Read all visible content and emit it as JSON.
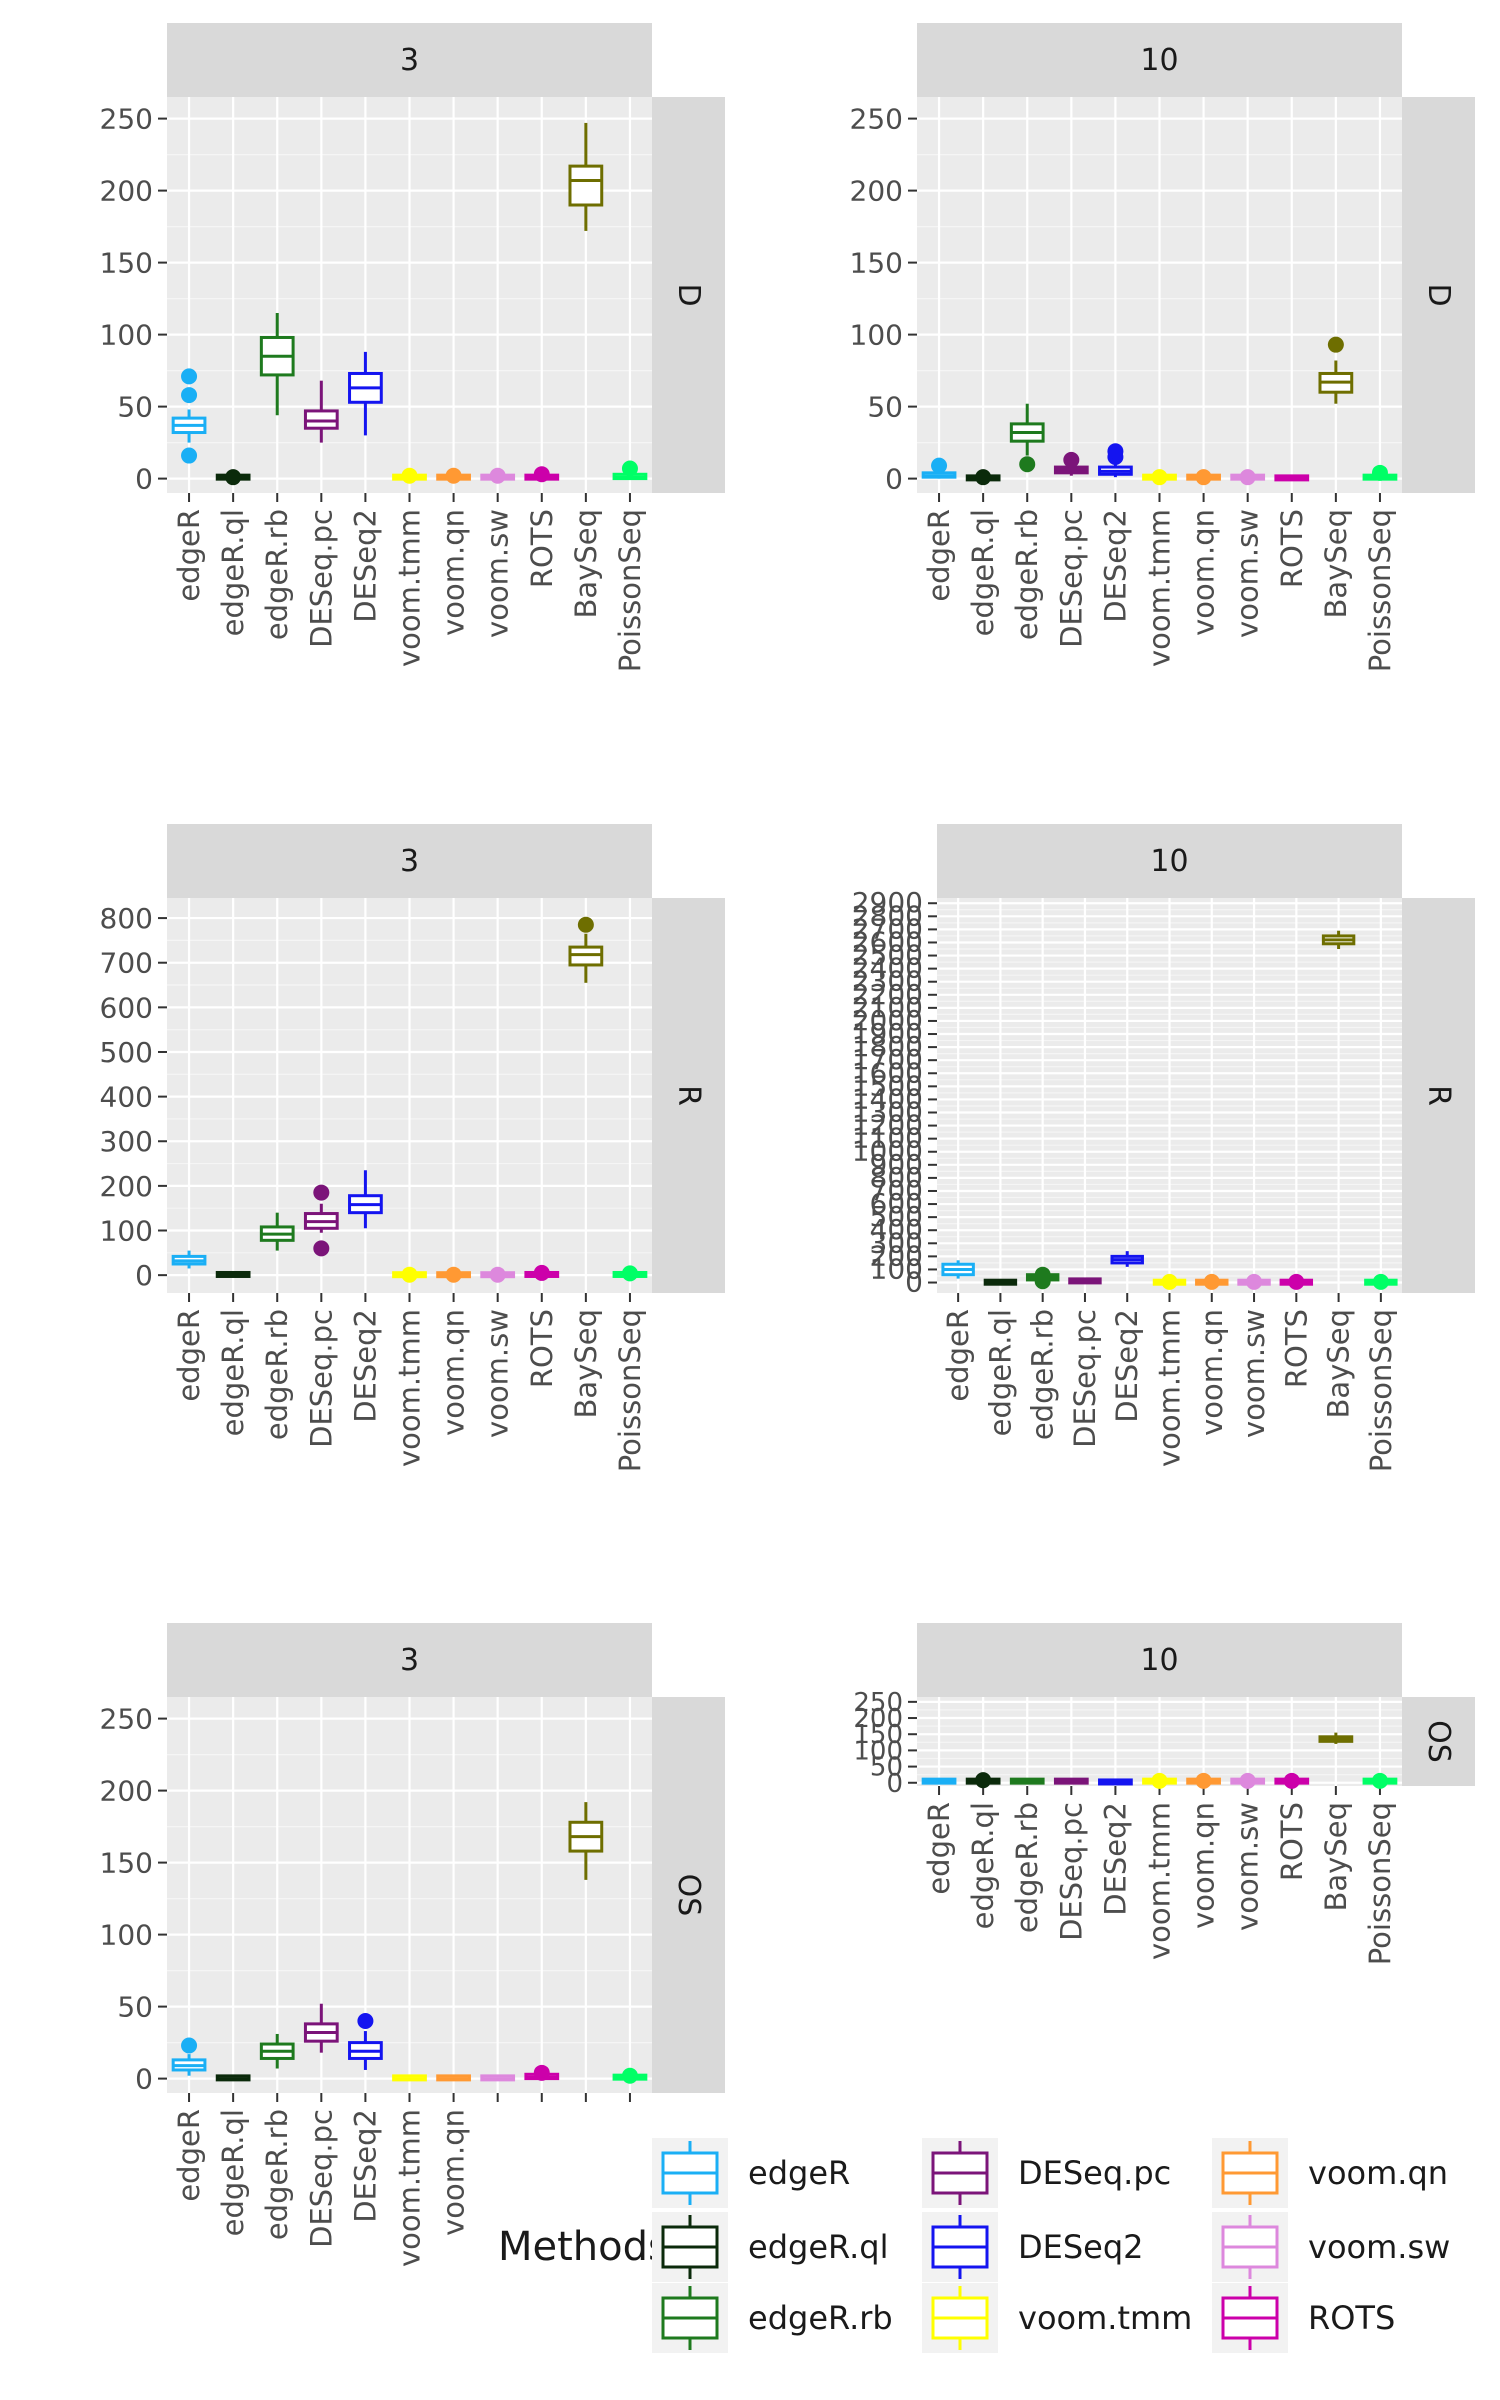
{
  "colors": {
    "edgeR": "#1AAFF5",
    "edgeR.ql": "#0B2A0B",
    "edgeR.rb": "#1E7A1E",
    "DESeq.pc": "#7B1479",
    "DESeq2": "#1414F0",
    "voom.tmm": "#FFFF00",
    "voom.qn": "#FF9933",
    "voom.sw": "#DD88DD",
    "ROTS": "#CC00AA",
    "BaySeq": "#6E6E00",
    "PoissonSeq": "#00FF66"
  },
  "legend": {
    "title": "Methods",
    "items": [
      "edgeR",
      "edgeR.ql",
      "edgeR.rb",
      "DESeq.pc",
      "DESeq2",
      "voom.tmm",
      "voom.qn",
      "voom.sw",
      "ROTS"
    ]
  },
  "chart_data": [
    {
      "type": "boxplot",
      "col_strip": "3",
      "row_strip": "D",
      "ylim": [
        -10,
        265
      ],
      "yticks": [
        "0",
        "50",
        "100",
        "150",
        "200",
        "250"
      ],
      "ytick_values": [
        0,
        50,
        100,
        150,
        200,
        250
      ],
      "categories": [
        "edgeR",
        "edgeR.ql",
        "edgeR.rb",
        "DESeq.pc",
        "DESeq2",
        "voom.tmm",
        "voom.qn",
        "voom.sw",
        "ROTS",
        "BaySeq",
        "PoissonSeq"
      ],
      "boxes": [
        {
          "min": 25,
          "q1": 32,
          "median": 37,
          "q3": 42,
          "max": 48,
          "outliers": [
            16,
            58,
            71
          ]
        },
        {
          "min": 0,
          "q1": 0,
          "median": 1,
          "q3": 2,
          "max": 3,
          "outliers": [
            1
          ]
        },
        {
          "min": 44,
          "q1": 72,
          "median": 85,
          "q3": 98,
          "max": 115,
          "outliers": []
        },
        {
          "min": 25,
          "q1": 35,
          "median": 40,
          "q3": 47,
          "max": 68,
          "outliers": []
        },
        {
          "min": 30,
          "q1": 53,
          "median": 63,
          "q3": 73,
          "max": 88,
          "outliers": []
        },
        {
          "min": 0,
          "q1": 0,
          "median": 1,
          "q3": 2,
          "max": 4,
          "outliers": [
            2
          ]
        },
        {
          "min": 0,
          "q1": 0,
          "median": 1,
          "q3": 2,
          "max": 4,
          "outliers": [
            2
          ]
        },
        {
          "min": 0,
          "q1": 0,
          "median": 1,
          "q3": 2,
          "max": 4,
          "outliers": [
            2
          ]
        },
        {
          "min": 0,
          "q1": 0,
          "median": 1,
          "q3": 2,
          "max": 5,
          "outliers": [
            3
          ]
        },
        {
          "min": 172,
          "q1": 190,
          "median": 207,
          "q3": 217,
          "max": 247,
          "outliers": []
        },
        {
          "min": 0,
          "q1": 0,
          "median": 1,
          "q3": 3,
          "max": 6,
          "outliers": [
            7
          ]
        }
      ]
    },
    {
      "type": "boxplot",
      "col_strip": "10",
      "row_strip": "D",
      "ylim": [
        -10,
        265
      ],
      "yticks": [
        "0",
        "50",
        "100",
        "150",
        "200",
        "250"
      ],
      "ytick_values": [
        0,
        50,
        100,
        150,
        200,
        250
      ],
      "categories": [
        "edgeR",
        "edgeR.ql",
        "edgeR.rb",
        "DESeq.pc",
        "DESeq2",
        "voom.tmm",
        "voom.qn",
        "voom.sw",
        "ROTS",
        "BaySeq",
        "PoissonSeq"
      ],
      "boxes": [
        {
          "min": 0,
          "q1": 1,
          "median": 2,
          "q3": 4,
          "max": 6,
          "outliers": [
            9
          ]
        },
        {
          "min": 0,
          "q1": 0,
          "median": 1,
          "q3": 1,
          "max": 2,
          "outliers": [
            1
          ]
        },
        {
          "min": 16,
          "q1": 26,
          "median": 32,
          "q3": 38,
          "max": 52,
          "outliers": [
            10
          ]
        },
        {
          "min": 2,
          "q1": 4,
          "median": 6,
          "q3": 8,
          "max": 10,
          "outliers": [
            13
          ]
        },
        {
          "min": 1,
          "q1": 3,
          "median": 5,
          "q3": 8,
          "max": 12,
          "outliers": [
            15,
            19
          ]
        },
        {
          "min": 0,
          "q1": 0,
          "median": 1,
          "q3": 2,
          "max": 3,
          "outliers": [
            1
          ]
        },
        {
          "min": 0,
          "q1": 0,
          "median": 1,
          "q3": 2,
          "max": 3,
          "outliers": [
            1
          ]
        },
        {
          "min": 0,
          "q1": 0,
          "median": 1,
          "q3": 2,
          "max": 3,
          "outliers": [
            1
          ]
        },
        {
          "min": 0,
          "q1": 0,
          "median": 1,
          "q3": 1,
          "max": 2,
          "outliers": []
        },
        {
          "min": 52,
          "q1": 60,
          "median": 67,
          "q3": 73,
          "max": 82,
          "outliers": [
            93
          ]
        },
        {
          "min": 0,
          "q1": 0,
          "median": 1,
          "q3": 2,
          "max": 3,
          "outliers": [
            4
          ]
        }
      ]
    },
    {
      "type": "boxplot",
      "col_strip": "3",
      "row_strip": "R",
      "ylim": [
        -40,
        845
      ],
      "yticks": [
        "0",
        "100",
        "200",
        "300",
        "400",
        "500",
        "600",
        "700",
        "800"
      ],
      "ytick_values": [
        0,
        100,
        200,
        300,
        400,
        500,
        600,
        700,
        800
      ],
      "categories": [
        "edgeR",
        "edgeR.ql",
        "edgeR.rb",
        "DESeq.pc",
        "DESeq2",
        "voom.tmm",
        "voom.qn",
        "voom.sw",
        "ROTS",
        "BaySeq",
        "PoissonSeq"
      ],
      "boxes": [
        {
          "min": 15,
          "q1": 25,
          "median": 32,
          "q3": 42,
          "max": 55,
          "outliers": []
        },
        {
          "min": 0,
          "q1": 0,
          "median": 1,
          "q3": 3,
          "max": 5,
          "outliers": []
        },
        {
          "min": 55,
          "q1": 78,
          "median": 92,
          "q3": 108,
          "max": 140,
          "outliers": []
        },
        {
          "min": 95,
          "q1": 105,
          "median": 120,
          "q3": 138,
          "max": 160,
          "outliers": [
            60,
            185
          ]
        },
        {
          "min": 105,
          "q1": 140,
          "median": 158,
          "q3": 178,
          "max": 235,
          "outliers": []
        },
        {
          "min": 0,
          "q1": 0,
          "median": 1,
          "q3": 2,
          "max": 4,
          "outliers": [
            1
          ]
        },
        {
          "min": 0,
          "q1": 0,
          "median": 1,
          "q3": 2,
          "max": 4,
          "outliers": [
            1
          ]
        },
        {
          "min": 0,
          "q1": 0,
          "median": 1,
          "q3": 2,
          "max": 4,
          "outliers": [
            1
          ]
        },
        {
          "min": 0,
          "q1": 0,
          "median": 1,
          "q3": 3,
          "max": 6,
          "outliers": [
            5
          ]
        },
        {
          "min": 655,
          "q1": 695,
          "median": 718,
          "q3": 735,
          "max": 765,
          "outliers": [
            785
          ]
        },
        {
          "min": 0,
          "q1": 0,
          "median": 1,
          "q3": 3,
          "max": 6,
          "outliers": [
            4
          ]
        }
      ]
    },
    {
      "type": "boxplot",
      "col_strip": "10",
      "row_strip": "R",
      "ylim": [
        -80,
        2940
      ],
      "yticks": [
        "0",
        "100",
        "200",
        "300",
        "400",
        "500",
        "600",
        "700",
        "800",
        "900",
        "1000",
        "1100",
        "1200",
        "1300",
        "1400",
        "1500",
        "1600",
        "1700",
        "1800",
        "1900",
        "2000",
        "2100",
        "2200",
        "2300",
        "2400",
        "2500",
        "2600",
        "2700",
        "2800",
        "2900"
      ],
      "ytick_values": [
        0,
        100,
        200,
        300,
        400,
        500,
        600,
        700,
        800,
        900,
        1000,
        1100,
        1200,
        1300,
        1400,
        1500,
        1600,
        1700,
        1800,
        1900,
        2000,
        2100,
        2200,
        2300,
        2400,
        2500,
        2600,
        2700,
        2800,
        2900
      ],
      "categories": [
        "edgeR",
        "edgeR.ql",
        "edgeR.rb",
        "DESeq.pc",
        "DESeq2",
        "voom.tmm",
        "voom.qn",
        "voom.sw",
        "ROTS",
        "BaySeq",
        "PoissonSeq"
      ],
      "boxes": [
        {
          "min": 30,
          "q1": 60,
          "median": 100,
          "q3": 140,
          "max": 170,
          "outliers": []
        },
        {
          "min": 0,
          "q1": 0,
          "median": 2,
          "q3": 5,
          "max": 8,
          "outliers": []
        },
        {
          "min": 5,
          "q1": 20,
          "median": 40,
          "q3": 60,
          "max": 80,
          "outliers": [
            10,
            60
          ]
        },
        {
          "min": 0,
          "q1": 5,
          "median": 10,
          "q3": 20,
          "max": 30,
          "outliers": []
        },
        {
          "min": 120,
          "q1": 150,
          "median": 175,
          "q3": 200,
          "max": 240,
          "outliers": []
        },
        {
          "min": 0,
          "q1": 0,
          "median": 2,
          "q3": 5,
          "max": 10,
          "outliers": [
            5
          ]
        },
        {
          "min": 0,
          "q1": 0,
          "median": 2,
          "q3": 5,
          "max": 10,
          "outliers": [
            5
          ]
        },
        {
          "min": 0,
          "q1": 0,
          "median": 2,
          "q3": 5,
          "max": 10,
          "outliers": [
            5
          ]
        },
        {
          "min": 0,
          "q1": 0,
          "median": 2,
          "q3": 5,
          "max": 10,
          "outliers": [
            5
          ]
        },
        {
          "min": 2550,
          "q1": 2590,
          "median": 2620,
          "q3": 2650,
          "max": 2690,
          "outliers": []
        },
        {
          "min": 0,
          "q1": 0,
          "median": 2,
          "q3": 5,
          "max": 10,
          "outliers": [
            5
          ]
        }
      ]
    },
    {
      "type": "boxplot",
      "col_strip": "3",
      "row_strip": "OS",
      "ylim": [
        -10,
        265
      ],
      "yticks": [
        "0",
        "50",
        "100",
        "150",
        "200",
        "250"
      ],
      "ytick_values": [
        0,
        50,
        100,
        150,
        200,
        250
      ],
      "categories": [
        "edgeR",
        "edgeR.ql",
        "edgeR.rb",
        "DESeq.pc",
        "DESeq2",
        "voom.tmm",
        "voom.qn",
        "",
        "",
        "",
        ""
      ],
      "boxes": [
        {
          "min": 2,
          "q1": 6,
          "median": 9,
          "q3": 13,
          "max": 17,
          "outliers": [
            23
          ]
        },
        {
          "min": 0,
          "q1": 0,
          "median": 0,
          "q3": 1,
          "max": 2,
          "outliers": []
        },
        {
          "min": 7,
          "q1": 14,
          "median": 19,
          "q3": 24,
          "max": 31,
          "outliers": []
        },
        {
          "min": 18,
          "q1": 26,
          "median": 32,
          "q3": 38,
          "max": 52,
          "outliers": []
        },
        {
          "min": 6,
          "q1": 14,
          "median": 19,
          "q3": 25,
          "max": 33,
          "outliers": [
            40
          ]
        },
        {
          "min": 0,
          "q1": 0,
          "median": 0,
          "q3": 1,
          "max": 2,
          "outliers": []
        },
        {
          "min": 0,
          "q1": 0,
          "median": 0,
          "q3": 1,
          "max": 2,
          "outliers": []
        },
        {
          "min": 0,
          "q1": 0,
          "median": 0,
          "q3": 1,
          "max": 2,
          "outliers": []
        },
        {
          "min": 0,
          "q1": 0,
          "median": 1,
          "q3": 3,
          "max": 5,
          "outliers": [
            4
          ]
        },
        {
          "min": 138,
          "q1": 158,
          "median": 168,
          "q3": 178,
          "max": 192,
          "outliers": []
        },
        {
          "min": 0,
          "q1": 0,
          "median": 1,
          "q3": 2,
          "max": 4,
          "outliers": [
            2
          ]
        }
      ]
    },
    {
      "type": "boxplot",
      "col_strip": "10",
      "row_strip": "OS",
      "ylim": [
        -10,
        265
      ],
      "yticks": [
        "0",
        "50",
        "100",
        "150",
        "200",
        "250"
      ],
      "ytick_values": [
        0,
        50,
        100,
        150,
        200,
        250
      ],
      "categories": [
        "edgeR",
        "edgeR.ql",
        "edgeR.rb",
        "DESeq.pc",
        "DESeq2",
        "voom.tmm",
        "voom.qn",
        "voom.sw",
        "ROTS",
        "BaySeq",
        "PoissonSeq"
      ],
      "boxes": [
        {
          "min": 0,
          "q1": 2,
          "median": 4,
          "q3": 8,
          "max": 12,
          "outliers": []
        },
        {
          "min": 0,
          "q1": 2,
          "median": 4,
          "q3": 8,
          "max": 12,
          "outliers": [
            8
          ]
        },
        {
          "min": 0,
          "q1": 2,
          "median": 4,
          "q3": 8,
          "max": 12,
          "outliers": []
        },
        {
          "min": 0,
          "q1": 2,
          "median": 4,
          "q3": 8,
          "max": 12,
          "outliers": []
        },
        {
          "min": 0,
          "q1": 1,
          "median": 2,
          "q3": 4,
          "max": 8,
          "outliers": []
        },
        {
          "min": 0,
          "q1": 2,
          "median": 4,
          "q3": 8,
          "max": 12,
          "outliers": [
            6
          ]
        },
        {
          "min": 0,
          "q1": 2,
          "median": 4,
          "q3": 8,
          "max": 12,
          "outliers": [
            6
          ]
        },
        {
          "min": 0,
          "q1": 2,
          "median": 4,
          "q3": 8,
          "max": 12,
          "outliers": [
            6
          ]
        },
        {
          "min": 0,
          "q1": 2,
          "median": 4,
          "q3": 8,
          "max": 12,
          "outliers": [
            6
          ]
        },
        {
          "min": 120,
          "q1": 128,
          "median": 135,
          "q3": 142,
          "max": 155,
          "outliers": []
        },
        {
          "min": 0,
          "q1": 2,
          "median": 4,
          "q3": 8,
          "max": 12,
          "outliers": [
            6
          ]
        }
      ]
    }
  ]
}
